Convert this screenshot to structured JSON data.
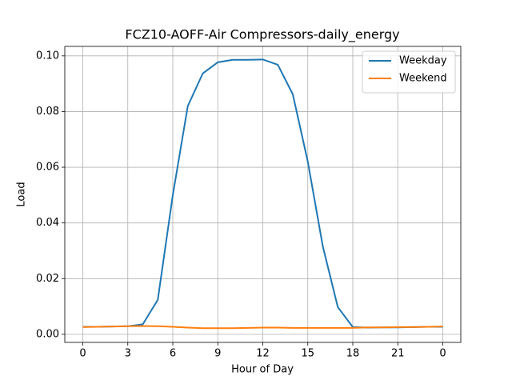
{
  "chart_data": {
    "type": "line",
    "title": "FCZ10-AOFF-Air Compressors-daily_energy",
    "xlabel": "Hour of Day",
    "ylabel": "Load",
    "x": [
      0,
      1,
      2,
      3,
      4,
      5,
      6,
      7,
      8,
      9,
      10,
      11,
      12,
      13,
      14,
      15,
      16,
      17,
      18,
      19,
      20,
      21,
      22,
      23,
      24
    ],
    "series": [
      {
        "name": "Weekday",
        "color": "#1f77b4",
        "values": [
          0.0027,
          0.0027,
          0.0028,
          0.0029,
          0.0036,
          0.0124,
          0.05,
          0.082,
          0.0937,
          0.0977,
          0.0986,
          0.0986,
          0.0987,
          0.0968,
          0.0862,
          0.062,
          0.0316,
          0.0098,
          0.0026,
          0.0024,
          0.0025,
          0.0025,
          0.0026,
          0.0027,
          0.0027
        ]
      },
      {
        "name": "Weekend",
        "color": "#ff7f0e",
        "values": [
          0.0026,
          0.0027,
          0.0028,
          0.0029,
          0.003,
          0.0029,
          0.0027,
          0.0024,
          0.0022,
          0.0022,
          0.0022,
          0.0023,
          0.0024,
          0.0024,
          0.0023,
          0.0023,
          0.0023,
          0.0023,
          0.0023,
          0.0025,
          0.0025,
          0.0026,
          0.0026,
          0.0027,
          0.0028
        ]
      }
    ],
    "xlim": [
      -1.2,
      25.2
    ],
    "ylim": [
      -0.0029,
      0.1034
    ],
    "xticks": [
      0,
      3,
      6,
      9,
      12,
      15,
      18,
      21,
      {
        "value": 24,
        "label": "0"
      }
    ],
    "yticks": [
      {
        "value": 0,
        "label": "0.00"
      },
      {
        "value": 0.02,
        "label": "0.02"
      },
      {
        "value": 0.04,
        "label": "0.04"
      },
      {
        "value": 0.06,
        "label": "0.06"
      },
      {
        "value": 0.08,
        "label": "0.08"
      },
      {
        "value": 0.1,
        "label": "0.10"
      }
    ],
    "grid": true,
    "legend": "upper-right"
  }
}
